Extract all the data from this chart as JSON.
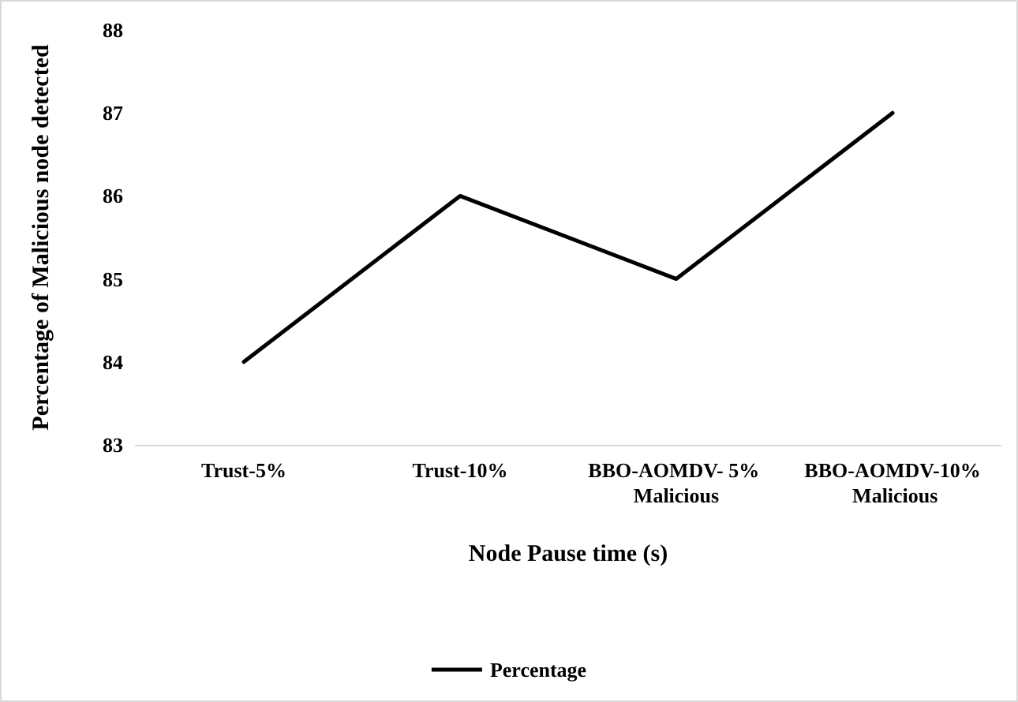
{
  "chart_data": {
    "type": "line",
    "xlabel": "Node Pause time (s)",
    "ylabel": "Percentage of Malicious node detected",
    "categories": [
      "Trust-5%",
      "Trust-10%",
      "BBO-AOMDV- 5% Malicious",
      "BBO-AOMDV-10% Malicious"
    ],
    "series": [
      {
        "name": "Percentage",
        "color": "#000000",
        "values": [
          84,
          86,
          85,
          87
        ]
      }
    ],
    "ylim": [
      83,
      88
    ],
    "yticks": [
      83,
      84,
      85,
      86,
      87,
      88
    ],
    "grid": false,
    "legend": "bottom",
    "marker": "none",
    "line_style": "solid"
  }
}
